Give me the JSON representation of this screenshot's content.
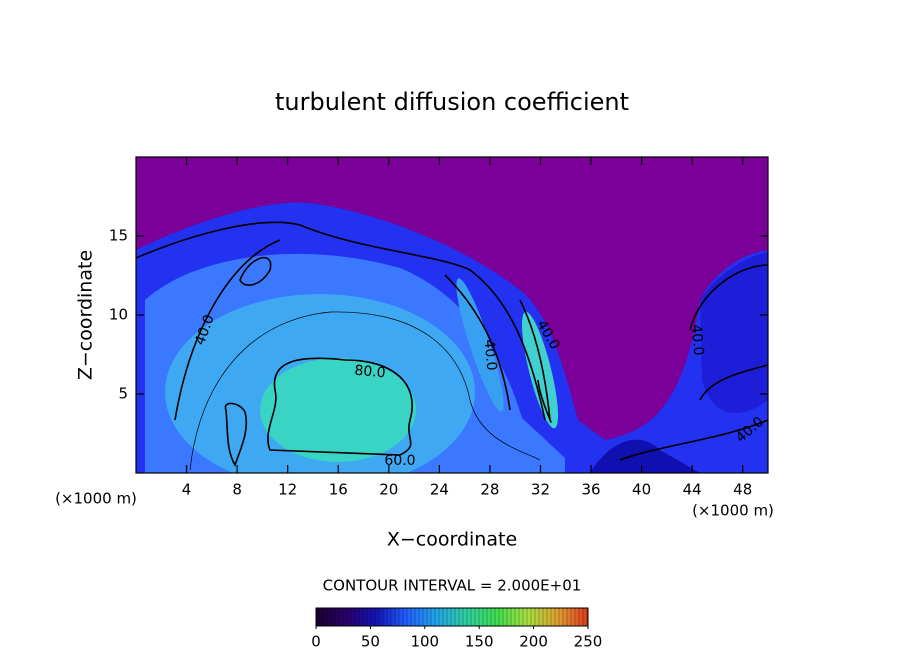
{
  "chart_data": {
    "type": "contour",
    "title": "turbulent diffusion coefficient",
    "x_label": "X−coordinate",
    "y_label": "Z−coordinate",
    "x_unit": "(×1000 m)",
    "xlim": [
      0,
      50
    ],
    "ylim": [
      0,
      20
    ],
    "xticks": [
      4,
      8,
      12,
      16,
      20,
      24,
      28,
      32,
      36,
      40,
      44,
      48
    ],
    "yticks": [
      5,
      10,
      15
    ],
    "contour_labels": [
      "40.0",
      "80.0",
      "60.0",
      "40.0",
      "40.0",
      "40.0",
      "40.0"
    ],
    "contour_interval": "CONTOUR INTERVAL = 2.000E+01",
    "colorbar": {
      "lim": [
        0,
        250
      ],
      "ticks": [
        0,
        50,
        100,
        150,
        200,
        250
      ],
      "colors": [
        "#1a0030",
        "#2a006a",
        "#1414b8",
        "#2060ff",
        "#20a8e8",
        "#30d0a0",
        "#40e050",
        "#a8e040",
        "#e0a030",
        "#e03a20"
      ]
    }
  }
}
